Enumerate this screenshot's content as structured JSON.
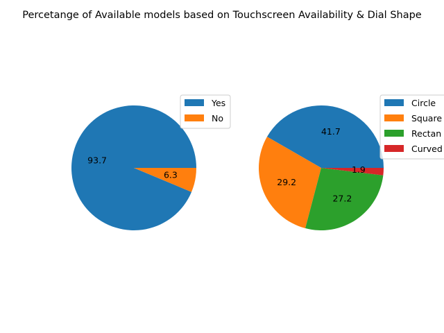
{
  "title": "Percetange of Available models based on Touchscreen Availability & Dial Shape",
  "colors": {
    "blue": "#1f77b4",
    "orange": "#ff7f0e",
    "green": "#2ca02c",
    "red": "#d62728"
  },
  "chart_data": [
    {
      "type": "pie",
      "subtitle": "",
      "labels": [
        "Yes",
        "No"
      ],
      "values": [
        93.7,
        6.3
      ],
      "value_labels": [
        "93.7",
        "6.3"
      ],
      "colors": [
        "#1f77b4",
        "#ff7f0e"
      ],
      "legend": {
        "entries": [
          "Yes",
          "No"
        ],
        "placement": "upper-right"
      }
    },
    {
      "type": "pie",
      "subtitle": "",
      "labels": [
        "Circle",
        "Square",
        "Rectan",
        "Curved"
      ],
      "values": [
        41.7,
        29.2,
        27.2,
        1.9
      ],
      "value_labels": [
        "41.7",
        "29.2",
        "27.2",
        "1.9"
      ],
      "colors": [
        "#1f77b4",
        "#ff7f0e",
        "#2ca02c",
        "#d62728"
      ],
      "legend": {
        "entries": [
          "Circle",
          "Square",
          "Rectan",
          "Curved"
        ],
        "placement": "upper-right (clipped)"
      }
    }
  ]
}
